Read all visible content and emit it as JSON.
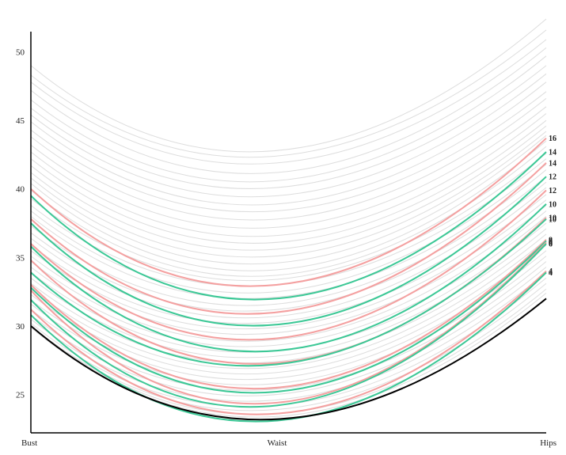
{
  "chart_data": {
    "type": "line",
    "title": "",
    "xlabel": "",
    "ylabel": "",
    "categories": [
      "Bust",
      "Waist",
      "Hips"
    ],
    "ylim": [
      22.2,
      52.4
    ],
    "yticks": [
      25,
      30,
      35,
      40,
      45,
      50
    ],
    "grid": false,
    "legend": "none",
    "colors": {
      "background_series": "#dddddd",
      "red": "#f4a0a0",
      "green": "#3cc896",
      "base": "#000000"
    },
    "base_series": {
      "values": [
        30.0,
        23.2,
        32.0
      ]
    },
    "highlighted_series": [
      {
        "label": "16",
        "color": "red",
        "values": [
          40.0,
          33.0,
          43.7
        ]
      },
      {
        "label": "14",
        "color": "green",
        "values": [
          39.5,
          32.0,
          42.7
        ]
      },
      {
        "label": "14",
        "color": "red",
        "values": [
          37.8,
          31.0,
          41.9
        ]
      },
      {
        "label": "12",
        "color": "green",
        "values": [
          37.5,
          30.1,
          40.9
        ]
      },
      {
        "label": "12",
        "color": "red",
        "values": [
          36.0,
          29.1,
          39.9
        ]
      },
      {
        "label": "10",
        "color": "green",
        "values": [
          35.8,
          28.2,
          38.9
        ]
      },
      {
        "label": "10",
        "color": "red",
        "values": [
          34.8,
          27.3,
          37.9
        ]
      },
      {
        "label": "10",
        "color": "green",
        "values": [
          33.9,
          27.2,
          37.8
        ]
      },
      {
        "label": "8",
        "color": "red",
        "values": [
          33.0,
          25.5,
          36.3
        ]
      },
      {
        "label": "8",
        "color": "green",
        "values": [
          32.8,
          25.2,
          36.2
        ]
      },
      {
        "label": "6",
        "color": "red",
        "values": [
          32.6,
          24.4,
          36.1
        ]
      },
      {
        "label": "6",
        "color": "green",
        "values": [
          31.9,
          24.2,
          36.0
        ]
      },
      {
        "label": "4",
        "color": "red",
        "values": [
          31.2,
          23.6,
          34.0
        ]
      },
      {
        "label": "4",
        "color": "green",
        "values": [
          30.8,
          23.1,
          33.9
        ]
      }
    ],
    "background_series": [
      [
        49.0,
        42.8,
        52.4
      ],
      [
        48.3,
        42.4,
        51.6
      ],
      [
        47.8,
        41.9,
        50.9
      ],
      [
        47.2,
        41.2,
        50.3
      ],
      [
        46.5,
        40.6,
        49.7
      ],
      [
        45.9,
        40.1,
        49.0
      ],
      [
        45.4,
        39.5,
        48.4
      ],
      [
        44.9,
        38.9,
        47.8
      ],
      [
        44.3,
        38.4,
        47.1
      ],
      [
        43.8,
        37.8,
        46.6
      ],
      [
        43.2,
        37.2,
        46.0
      ],
      [
        42.7,
        36.6,
        45.5
      ],
      [
        42.2,
        36.1,
        45.0
      ],
      [
        41.7,
        35.6,
        44.6
      ],
      [
        41.2,
        35.1,
        44.2
      ],
      [
        40.8,
        34.6,
        43.9
      ],
      [
        40.4,
        34.1,
        43.5
      ],
      [
        39.9,
        33.7,
        43.1
      ],
      [
        39.3,
        33.4,
        42.6
      ],
      [
        38.8,
        33.0,
        42.2
      ],
      [
        38.4,
        32.5,
        41.8
      ],
      [
        38.0,
        32.1,
        41.4
      ],
      [
        37.3,
        31.6,
        40.9
      ],
      [
        36.8,
        31.2,
        40.5
      ],
      [
        36.4,
        30.7,
        40.1
      ],
      [
        35.9,
        30.3,
        39.6
      ],
      [
        35.5,
        29.9,
        39.2
      ],
      [
        35.1,
        29.5,
        38.8
      ],
      [
        34.7,
        29.0,
        38.4
      ],
      [
        34.3,
        28.6,
        38.0
      ],
      [
        33.9,
        28.2,
        37.5
      ],
      [
        33.5,
        27.8,
        37.1
      ],
      [
        33.1,
        27.4,
        36.7
      ],
      [
        32.7,
        27.0,
        36.3
      ],
      [
        32.3,
        26.6,
        35.9
      ],
      [
        31.9,
        26.2,
        35.5
      ],
      [
        31.6,
        25.8,
        35.1
      ],
      [
        31.2,
        25.4,
        34.7
      ],
      [
        30.8,
        25.0,
        34.3
      ],
      [
        30.5,
        24.6,
        33.9
      ],
      [
        30.2,
        24.2,
        33.5
      ],
      [
        30.0,
        23.9,
        33.1
      ],
      [
        30.0,
        23.6,
        32.7
      ],
      [
        29.9,
        23.4,
        32.4
      ]
    ]
  }
}
